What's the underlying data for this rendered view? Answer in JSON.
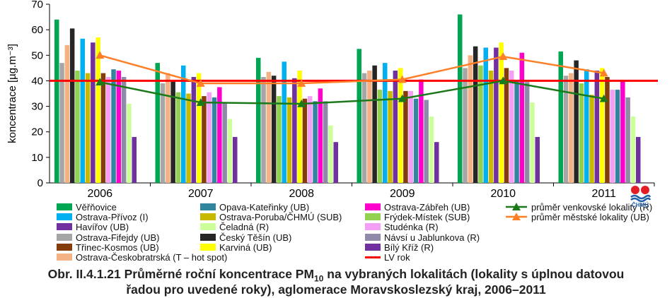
{
  "caption": {
    "line1_prefix": "Obr. II.4.1.21  Průměrné roční koncentrace PM",
    "line1_sub": "10",
    "line1_suffix": " na vybraných lokalitách (lokality s úplnou datovou",
    "line2": "řadou pro uvedené roky), aglomerace Moravskoslezský kraj, 2006–2011"
  },
  "logo": {
    "label": "ČHMÚ"
  },
  "chart_data": {
    "type": "bar",
    "ylabel": "koncentrace [µg.m⁻³]",
    "ylim": [
      0,
      70
    ],
    "yticks": [
      0,
      10,
      20,
      30,
      40,
      50,
      60,
      70
    ],
    "categories": [
      "2006",
      "2007",
      "2008",
      "2009",
      "2010",
      "2011"
    ],
    "series": [
      {
        "name": "Věřňovice",
        "color": "#00a651",
        "values": [
          64,
          47,
          49,
          52.5,
          66,
          51.5
        ]
      },
      {
        "name": "Ostrava-Fifejdy (UB)",
        "color": "#a6a6a6",
        "values": [
          47,
          39,
          41.5,
          43,
          45,
          42
        ]
      },
      {
        "name": "Ostrava-Českobratrská (T – hot spot)",
        "color": "#f4b183",
        "values": [
          54,
          43,
          43.5,
          44,
          50,
          43
        ]
      },
      {
        "name": "Český Těšín (UB)",
        "color": "#262626",
        "values": [
          60.5,
          40,
          42,
          46,
          53.5,
          48
        ]
      },
      {
        "name": "Frýdek-Místek (SUB)",
        "color": "#92d050",
        "values": [
          44,
          35.5,
          34,
          36.5,
          46,
          39
        ]
      },
      {
        "name": "Ostrava-Přívoz (I)",
        "color": "#00b0f0",
        "values": [
          56.5,
          46,
          47.5,
          47,
          53,
          44.5
        ]
      },
      {
        "name": "Ostrava-Poruba/ČHMÚ (SUB)",
        "color": "#c9b800",
        "values": [
          43,
          35,
          33.5,
          36,
          44,
          34.5
        ]
      },
      {
        "name": "Havířov (UB)",
        "color": "#7030a0",
        "values": [
          55,
          41.5,
          41,
          44,
          53,
          44
        ]
      },
      {
        "name": "Karviná (UB)",
        "color": "#ffff00",
        "values": [
          57,
          43,
          44,
          45,
          55,
          45
        ]
      },
      {
        "name": "Třinec-Kosmos (UB)",
        "color": "#843c0c",
        "values": [
          43,
          34,
          33,
          36,
          45,
          41.5
        ]
      },
      {
        "name": "Studénka (R)",
        "color": "#f49ef5",
        "values": [
          41.5,
          35.5,
          34,
          36,
          44,
          36.5
        ]
      },
      {
        "name": "Opava-Kateřinky (UB)",
        "color": "#31859c",
        "values": [
          44.5,
          33.5,
          32,
          33,
          40,
          36.5
        ]
      },
      {
        "name": "Ostrava-Zábřeh (UB)",
        "color": "#ff00cc",
        "values": [
          44,
          37.5,
          37,
          40.5,
          51,
          40
        ]
      },
      {
        "name": "Návsí u Jablunkova (R)",
        "color": "#8e8ba8",
        "values": [
          41.5,
          31.5,
          32,
          32.5,
          39.5,
          33.5
        ]
      },
      {
        "name": "Čeladná (R)",
        "color": "#ccff99",
        "values": [
          31,
          25,
          22.5,
          26,
          31.5,
          26
        ]
      },
      {
        "name": "Bílý Kříž (R)",
        "color": "#7030a0",
        "values": [
          18,
          18,
          16,
          16,
          18,
          18
        ]
      }
    ],
    "lines": [
      {
        "name": "průměr venkovské lokality (R)",
        "color": "#1a7a1a",
        "marker": "triangle",
        "values": [
          39.5,
          31.5,
          31,
          33,
          40,
          33
        ]
      },
      {
        "name": "průměr městské lokality (UB)",
        "color": "#ff7f27",
        "marker": "triangle",
        "values": [
          50,
          39,
          39,
          40.5,
          49.5,
          43
        ]
      }
    ],
    "reference_line": {
      "name": "LV rok",
      "color": "#ff0000",
      "value": 40
    },
    "legend": [
      {
        "name": "Věřňovice",
        "color": "#00a651",
        "col": 0,
        "row": 0
      },
      {
        "name": "Ostrava-Přívoz (I)",
        "color": "#00b0f0",
        "col": 0,
        "row": 1
      },
      {
        "name": "Havířov (UB)",
        "color": "#7030a0",
        "col": 0,
        "row": 2
      },
      {
        "name": "Ostrava-Fifejdy (UB)",
        "color": "#a6a6a6",
        "col": 0,
        "row": 3
      },
      {
        "name": "Třinec-Kosmos (UB)",
        "color": "#843c0c",
        "col": 0,
        "row": 4
      },
      {
        "name": "Ostrava-Českobratrská (T – hot spot)",
        "color": "#f4b183",
        "col": 0,
        "row": 5
      },
      {
        "name": "Opava-Kateřinky (UB)",
        "color": "#31859c",
        "col": 1,
        "row": 0
      },
      {
        "name": "Ostrava-Poruba/ČHMÚ (SUB)",
        "color": "#c9b800",
        "col": 1,
        "row": 1
      },
      {
        "name": "Čeladná (R)",
        "color": "#ccff99",
        "col": 1,
        "row": 2
      },
      {
        "name": "Český Těšín (UB)",
        "color": "#262626",
        "col": 1,
        "row": 3
      },
      {
        "name": "Karviná (UB)",
        "color": "#ffff00",
        "col": 1,
        "row": 4
      },
      {
        "name": "Ostrava-Zábřeh (UB)",
        "color": "#ff00cc",
        "col": 2,
        "row": 0
      },
      {
        "name": "Frýdek-Místek (SUB)",
        "color": "#92d050",
        "col": 2,
        "row": 1
      },
      {
        "name": "Studénka (R)",
        "color": "#f49ef5",
        "col": 2,
        "row": 2
      },
      {
        "name": "Návsí u Jablunkova (R)",
        "color": "#8e8ba8",
        "col": 2,
        "row": 3
      },
      {
        "name": "Bílý Kříž (R)",
        "color": "#7030a0",
        "col": 2,
        "row": 4
      },
      {
        "name": "LV rok",
        "color": "#ff0000",
        "col": 2,
        "row": 5,
        "kind": "line"
      },
      {
        "name": "průměr venkovské lokality (R)",
        "color": "#1a7a1a",
        "col": 3,
        "row": 0,
        "kind": "marker-line"
      },
      {
        "name": "průměr městské lokality (UB)",
        "color": "#ff7f27",
        "col": 3,
        "row": 1,
        "kind": "marker-line"
      }
    ]
  }
}
